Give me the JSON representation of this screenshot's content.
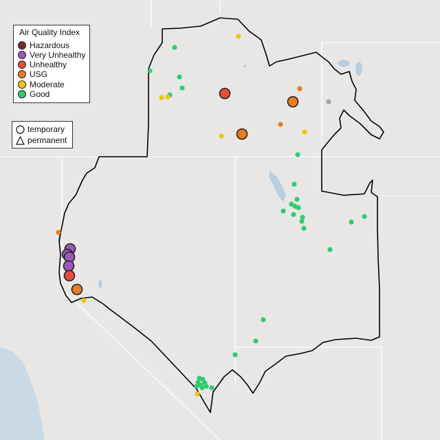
{
  "legend": {
    "title": "Air Quality Index",
    "categories": [
      {
        "label": "Hazardous",
        "color": "#7e2b2b"
      },
      {
        "label": "Very Unhealthy",
        "color": "#9b59b6"
      },
      {
        "label": "Unhealthy",
        "color": "#e74c3c"
      },
      {
        "label": "USG",
        "color": "#e67e22"
      },
      {
        "label": "Moderate",
        "color": "#f1c40f"
      },
      {
        "label": "Good",
        "color": "#2ecc71"
      }
    ],
    "types": [
      {
        "label": "temporary",
        "shape": "circle"
      },
      {
        "label": "permanent",
        "shape": "triangle"
      }
    ]
  },
  "colors": {
    "land": "#e9e7e5",
    "water": "#b8cfe0",
    "ocean": "#c9d9e6",
    "region_outline": "#000000",
    "state_lines": "#ffffff",
    "unknown_monitor": "#a6a6a6"
  }
}
